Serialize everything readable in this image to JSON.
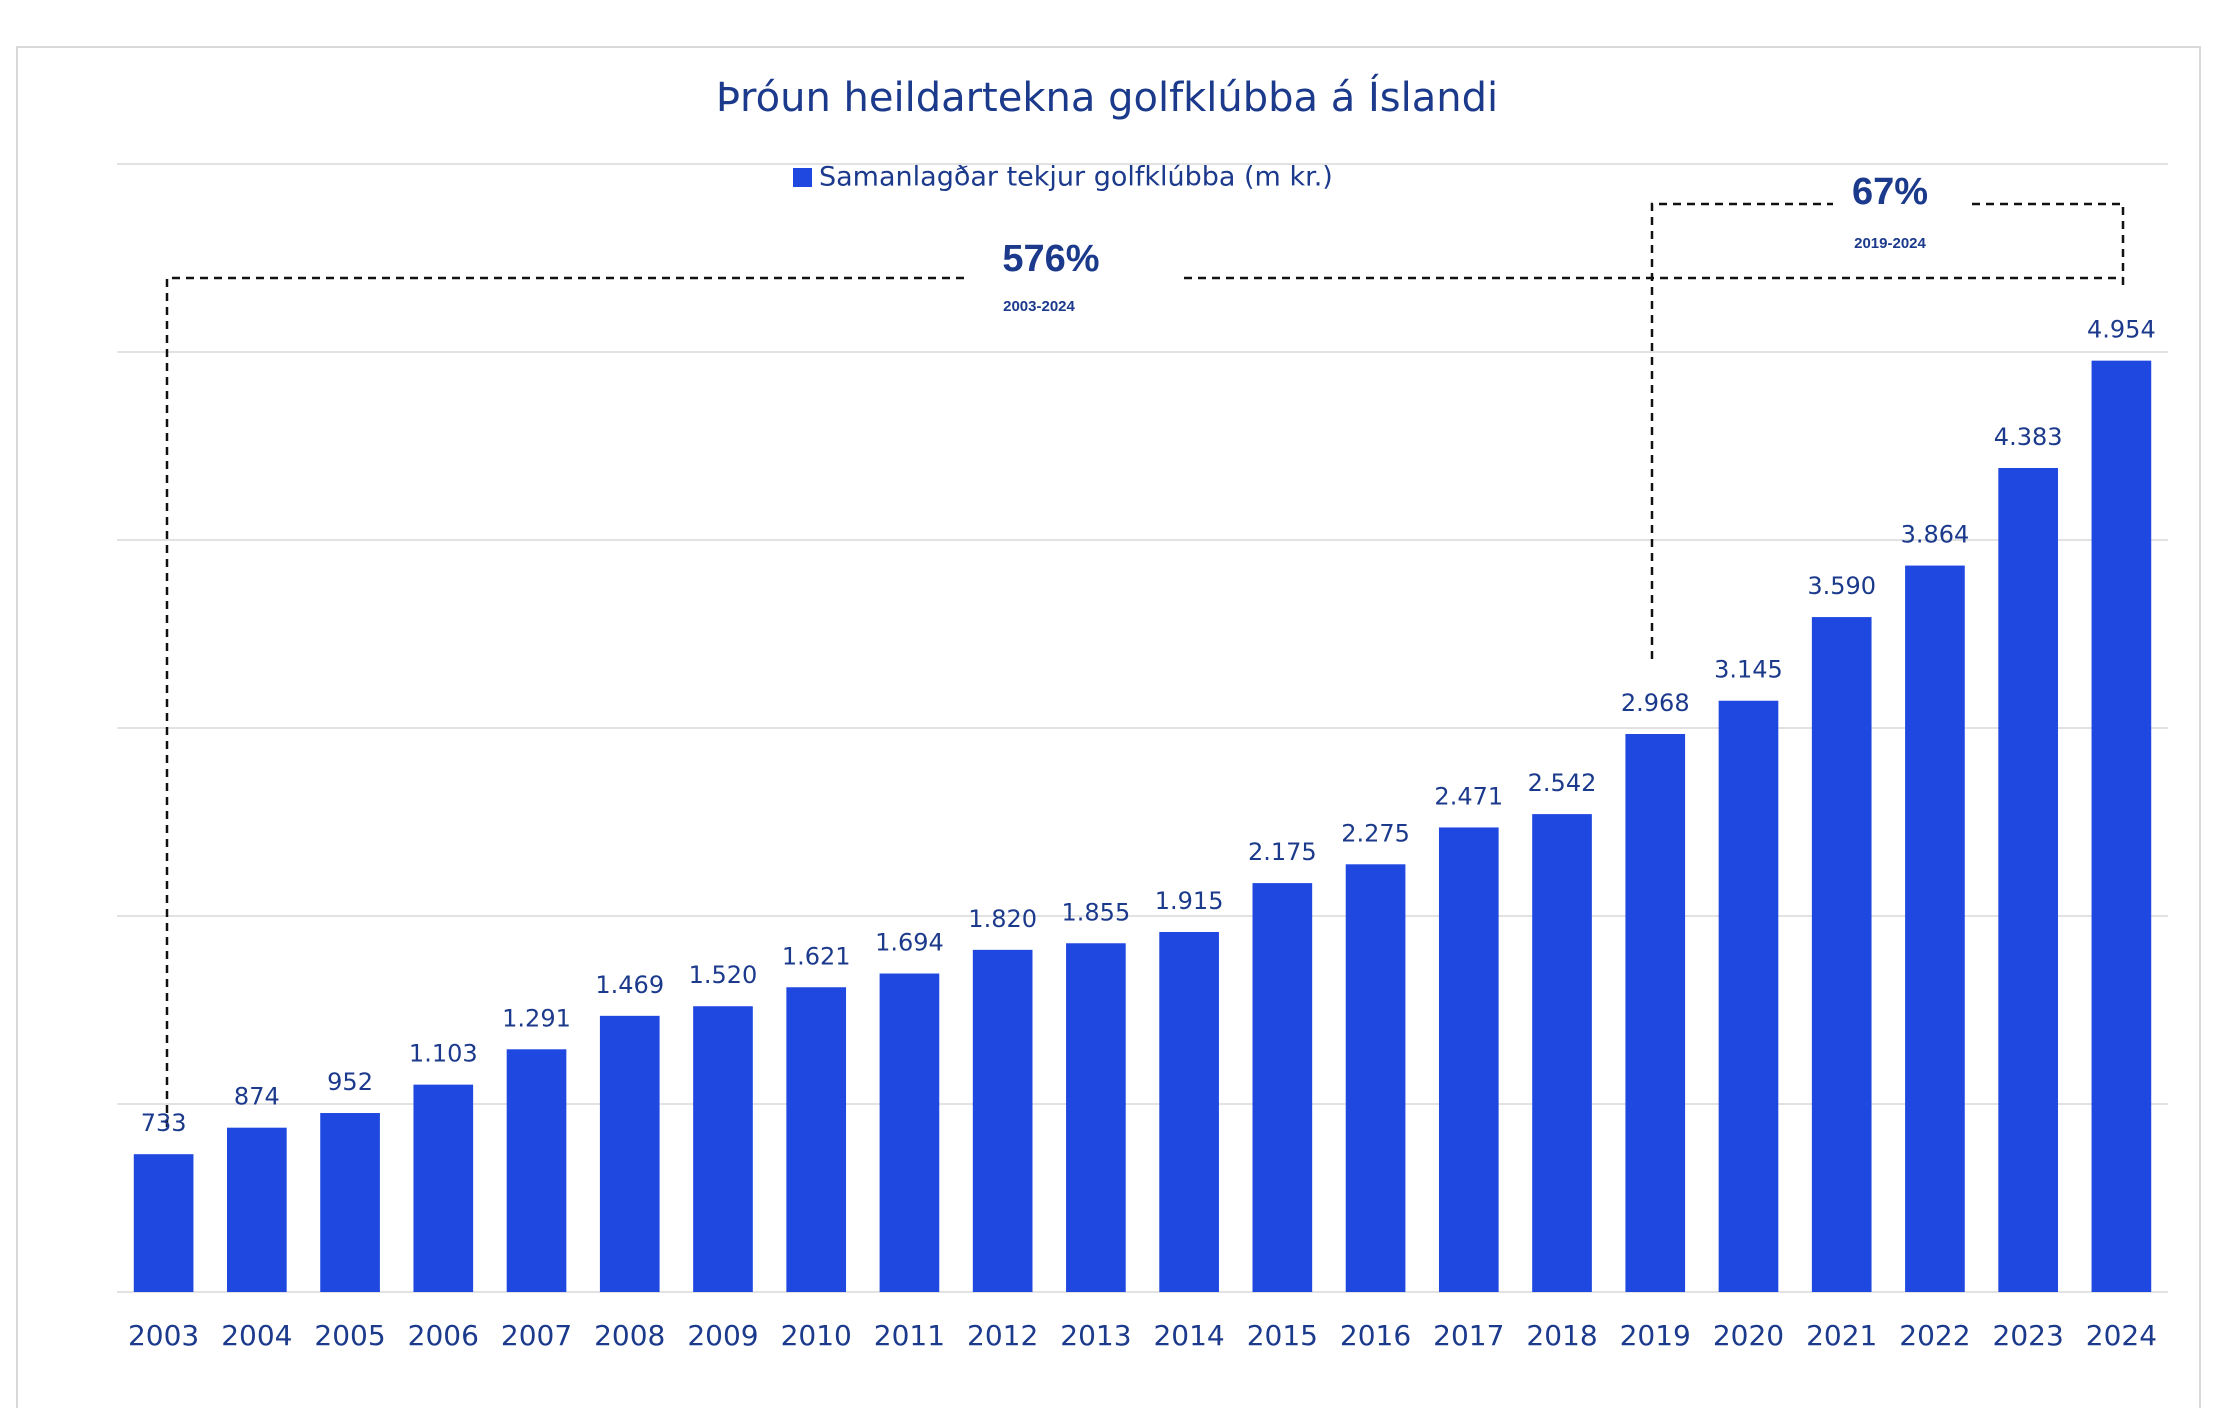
{
  "chart_data": {
    "type": "bar",
    "title": "Þróun heildartekna golfklúbba á Íslandi",
    "categories": [
      "2003",
      "2004",
      "2005",
      "2006",
      "2007",
      "2008",
      "2009",
      "2010",
      "2011",
      "2012",
      "2013",
      "2014",
      "2015",
      "2016",
      "2017",
      "2018",
      "2019",
      "2020",
      "2021",
      "2022",
      "2023",
      "2024"
    ],
    "series": [
      {
        "name": "Samanlagðar tekjur golfklúbba (m kr.)",
        "color": "#1f48e0",
        "values": [
          733,
          874,
          952,
          1103,
          1291,
          1469,
          1520,
          1621,
          1694,
          1820,
          1855,
          1915,
          2175,
          2275,
          2471,
          2542,
          2968,
          3145,
          3590,
          3864,
          4383,
          4954
        ],
        "value_labels": [
          "733",
          "874",
          "952",
          "1.103",
          "1.291",
          "1.469",
          "1.520",
          "1.621",
          "1.694",
          "1.820",
          "1.855",
          "1.915",
          "2.175",
          "2.275",
          "2.471",
          "2.542",
          "2.968",
          "3.145",
          "3.590",
          "3.864",
          "4.383",
          "4.954"
        ]
      }
    ],
    "ylim": [
      0,
      6000
    ],
    "yticks": [
      0,
      1000,
      2000,
      3000,
      4000,
      5000,
      6000
    ],
    "grid": true,
    "annotations": [
      {
        "text": "576%",
        "period": "2003-2024"
      },
      {
        "text": "67%",
        "period": "2019-2024"
      }
    ]
  }
}
